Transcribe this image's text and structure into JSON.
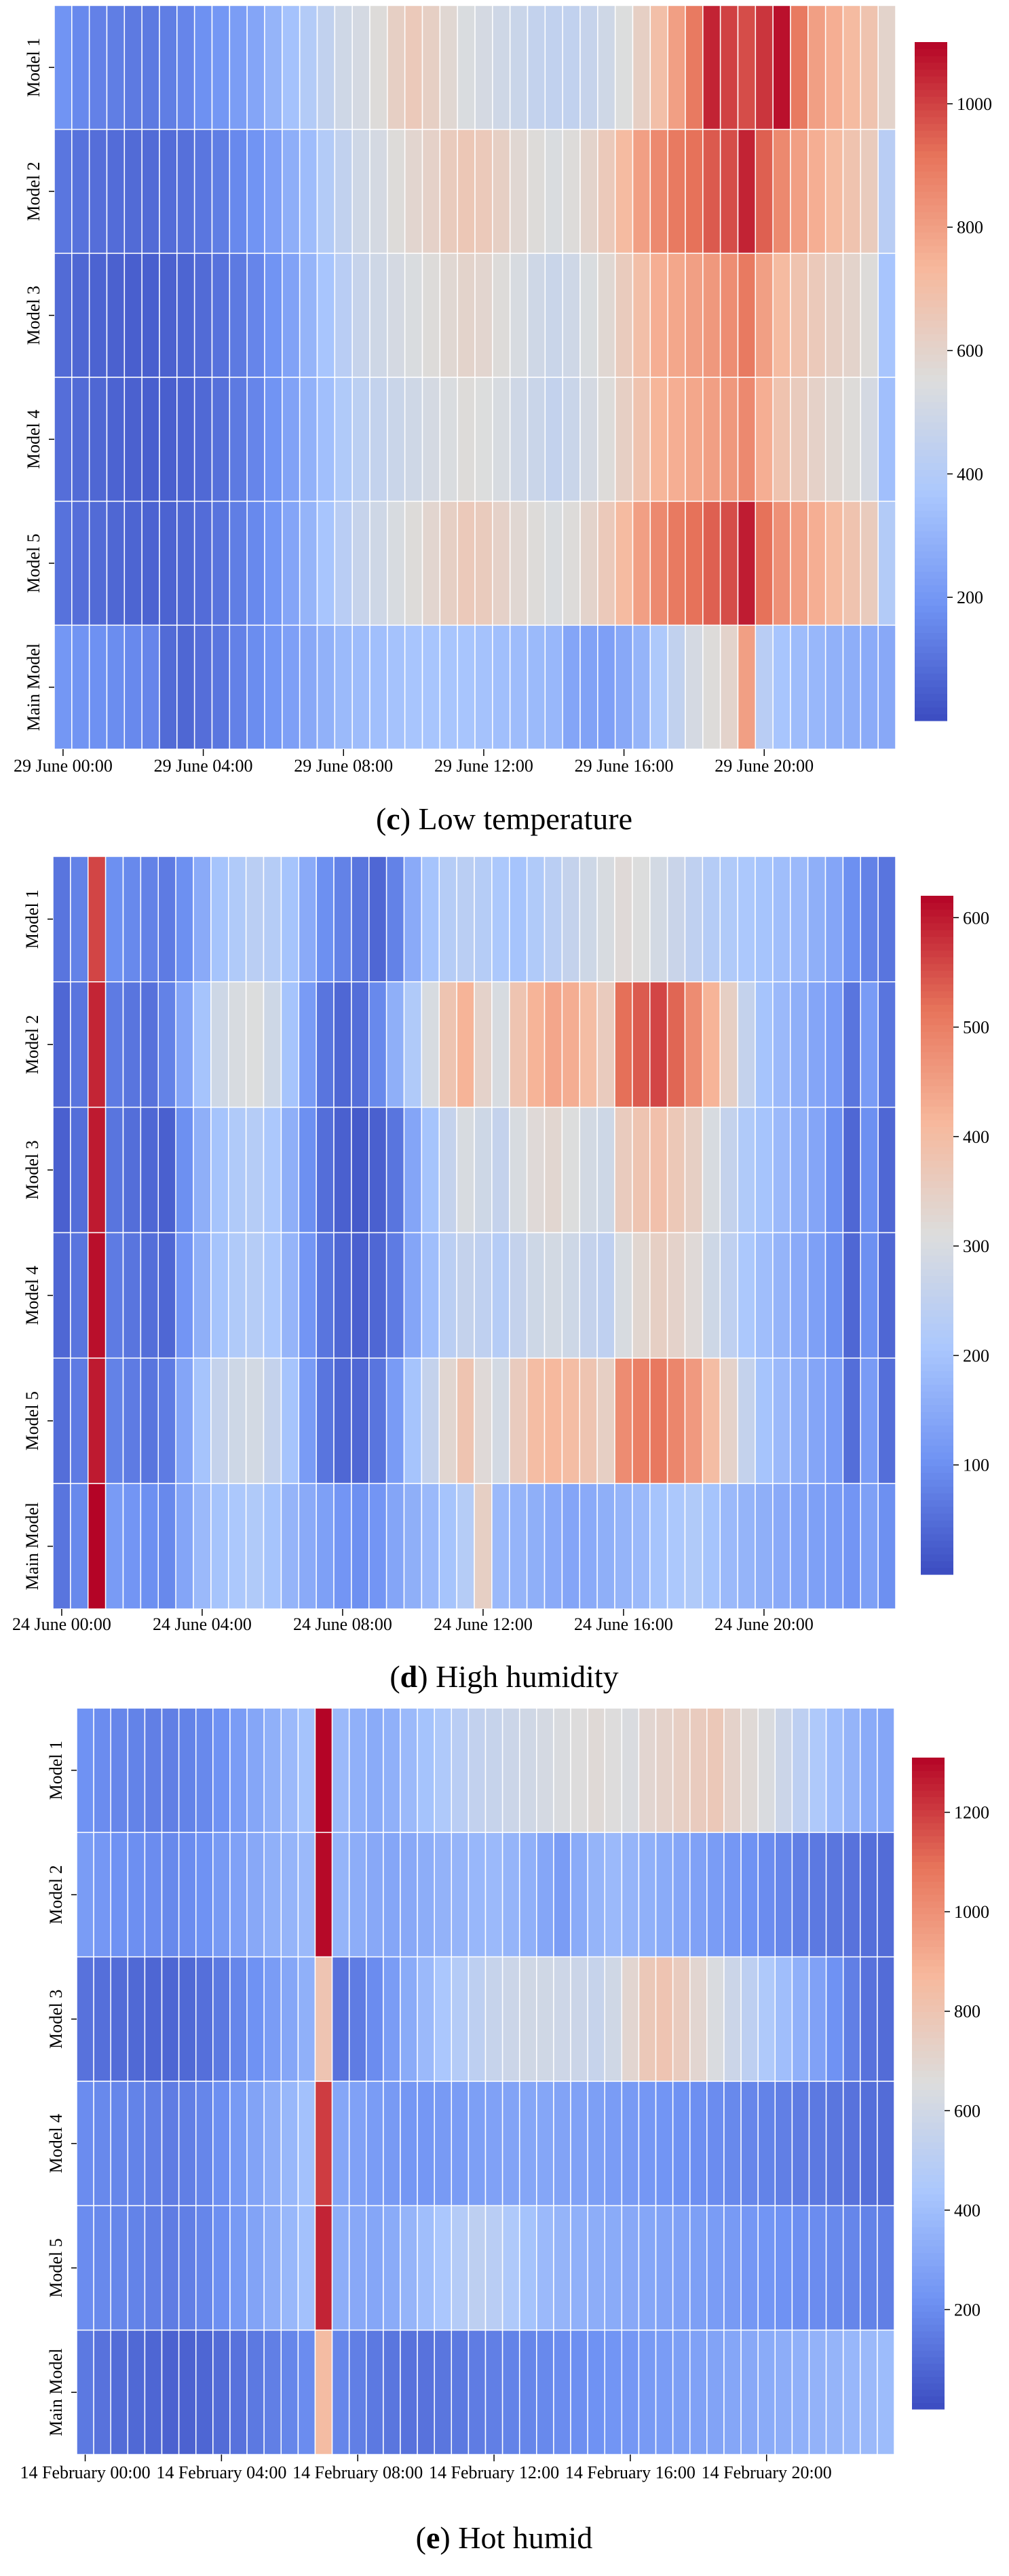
{
  "figure": {
    "palette": [
      "#3b4cc0",
      "#6f92f3",
      "#aac7fd",
      "#dcdddd",
      "#f7b89c",
      "#e7745b",
      "#b40426"
    ]
  },
  "chart_data": [
    {
      "type": "heatmap",
      "panel": "c",
      "caption_label": "c",
      "caption_text": " Low temperature",
      "rows": [
        "Model 1",
        "Model 2",
        "Model 3",
        "Model 4",
        "Model 5",
        "Main Model"
      ],
      "x_ticks": [
        "29 June 00:00",
        "29 June 04:00",
        "29 June 08:00",
        "29 June 12:00",
        "29 June 16:00",
        "29 June 20:00"
      ],
      "x_tick_columns": [
        0,
        8,
        16,
        24,
        32,
        40
      ],
      "n_columns": 48,
      "colorbar": {
        "min": 0,
        "max": 1100,
        "ticks": [
          200,
          400,
          600,
          800,
          1000
        ]
      },
      "values": [
        [
          190,
          160,
          140,
          130,
          120,
          120,
          130,
          150,
          180,
          200,
          220,
          250,
          300,
          350,
          400,
          450,
          500,
          520,
          560,
          620,
          650,
          620,
          580,
          540,
          520,
          500,
          480,
          460,
          450,
          450,
          470,
          500,
          550,
          620,
          700,
          800,
          900,
          1050,
          1000,
          980,
          1020,
          1080,
          900,
          800,
          760,
          720,
          680,
          600
        ],
        [
          110,
          100,
          90,
          85,
          80,
          80,
          85,
          95,
          110,
          130,
          160,
          190,
          230,
          280,
          330,
          400,
          450,
          500,
          520,
          560,
          590,
          610,
          640,
          660,
          650,
          620,
          580,
          560,
          540,
          560,
          600,
          650,
          720,
          800,
          860,
          900,
          920,
          960,
          980,
          1050,
          950,
          860,
          800,
          760,
          720,
          680,
          640,
          420
        ],
        [
          80,
          70,
          60,
          55,
          50,
          50,
          55,
          65,
          80,
          100,
          120,
          150,
          190,
          240,
          300,
          360,
          420,
          470,
          500,
          520,
          540,
          560,
          580,
          600,
          590,
          560,
          530,
          500,
          480,
          500,
          540,
          580,
          640,
          700,
          760,
          780,
          800,
          820,
          850,
          900,
          800,
          720,
          680,
          650,
          620,
          600,
          560,
          360
        ],
        [
          90,
          80,
          70,
          60,
          55,
          50,
          50,
          60,
          75,
          95,
          120,
          150,
          190,
          240,
          290,
          340,
          390,
          430,
          460,
          480,
          500,
          520,
          540,
          560,
          550,
          530,
          500,
          480,
          460,
          480,
          520,
          560,
          620,
          680,
          740,
          760,
          780,
          800,
          820,
          860,
          760,
          680,
          640,
          610,
          580,
          560,
          520,
          340
        ],
        [
          100,
          90,
          80,
          70,
          65,
          60,
          60,
          70,
          85,
          105,
          130,
          160,
          200,
          250,
          300,
          360,
          420,
          470,
          500,
          530,
          560,
          590,
          620,
          650,
          640,
          610,
          580,
          560,
          540,
          560,
          600,
          650,
          720,
          800,
          860,
          900,
          920,
          950,
          980,
          1060,
          920,
          840,
          800,
          760,
          720,
          680,
          640,
          400
        ],
        [
          200,
          190,
          180,
          170,
          160,
          150,
          80,
          70,
          90,
          110,
          140,
          170,
          200,
          230,
          260,
          290,
          320,
          330,
          340,
          350,
          360,
          360,
          360,
          360,
          350,
          340,
          330,
          320,
          310,
          250,
          240,
          230,
          260,
          300,
          380,
          450,
          520,
          560,
          600,
          800,
          420,
          360,
          330,
          310,
          290,
          280,
          270,
          260
        ]
      ]
    },
    {
      "type": "heatmap",
      "panel": "d",
      "caption_label": "d",
      "caption_text": " High humidity",
      "rows": [
        "Model 1",
        "Model 2",
        "Model 3",
        "Model 4",
        "Model 5",
        "Main Model"
      ],
      "x_ticks": [
        "24 June 00:00",
        "24 June 04:00",
        "24 June 08:00",
        "24 June 12:00",
        "24 June 16:00",
        "24 June 20:00"
      ],
      "x_tick_columns": [
        0,
        8,
        16,
        24,
        32,
        40
      ],
      "n_columns": 48,
      "colorbar": {
        "min": 0,
        "max": 620,
        "ticks": [
          100,
          200,
          300,
          400,
          500,
          600
        ]
      },
      "values": [
        [
          60,
          80,
          560,
          100,
          90,
          80,
          70,
          100,
          150,
          200,
          220,
          240,
          230,
          200,
          150,
          100,
          80,
          60,
          40,
          80,
          150,
          200,
          230,
          240,
          230,
          210,
          200,
          220,
          240,
          260,
          280,
          300,
          320,
          310,
          290,
          270,
          250,
          230,
          220,
          210,
          200,
          190,
          180,
          160,
          140,
          100,
          80,
          60
        ],
        [
          40,
          60,
          590,
          70,
          60,
          55,
          80,
          140,
          200,
          280,
          300,
          310,
          280,
          200,
          120,
          60,
          40,
          50,
          90,
          160,
          220,
          300,
          380,
          420,
          340,
          300,
          380,
          420,
          440,
          430,
          400,
          360,
          520,
          540,
          560,
          530,
          480,
          420,
          350,
          260,
          200,
          180,
          160,
          140,
          120,
          60,
          120,
          60
        ],
        [
          30,
          50,
          600,
          60,
          50,
          40,
          30,
          100,
          160,
          200,
          220,
          230,
          210,
          160,
          100,
          50,
          30,
          20,
          30,
          60,
          140,
          200,
          260,
          300,
          280,
          260,
          300,
          320,
          330,
          310,
          290,
          280,
          360,
          380,
          390,
          370,
          350,
          300,
          260,
          220,
          200,
          180,
          160,
          140,
          100,
          40,
          100,
          40
        ],
        [
          40,
          60,
          610,
          70,
          60,
          50,
          40,
          110,
          160,
          200,
          220,
          230,
          210,
          170,
          110,
          60,
          40,
          30,
          40,
          70,
          140,
          190,
          240,
          260,
          250,
          230,
          260,
          280,
          290,
          280,
          260,
          250,
          300,
          330,
          350,
          340,
          320,
          280,
          250,
          210,
          190,
          170,
          150,
          130,
          100,
          40,
          100,
          40
        ],
        [
          50,
          70,
          600,
          80,
          70,
          60,
          70,
          140,
          200,
          260,
          280,
          290,
          260,
          200,
          120,
          60,
          40,
          40,
          60,
          120,
          200,
          260,
          330,
          380,
          320,
          290,
          360,
          400,
          410,
          400,
          380,
          350,
          480,
          500,
          510,
          490,
          460,
          400,
          340,
          260,
          200,
          180,
          160,
          140,
          120,
          50,
          120,
          50
        ],
        [
          60,
          90,
          620,
          120,
          110,
          100,
          90,
          140,
          180,
          200,
          210,
          220,
          200,
          170,
          150,
          130,
          110,
          100,
          110,
          140,
          160,
          180,
          200,
          230,
          350,
          180,
          170,
          160,
          150,
          140,
          150,
          160,
          170,
          180,
          200,
          210,
          220,
          200,
          180,
          170,
          160,
          150,
          140,
          130,
          120,
          110,
          130,
          100
        ]
      ]
    },
    {
      "type": "heatmap",
      "panel": "e",
      "caption_label": "e",
      "caption_text": " Hot humid",
      "rows": [
        "Model 1",
        "Model 2",
        "Model 3",
        "Model 4",
        "Model 5",
        "Main Model"
      ],
      "x_ticks": [
        "14 February 00:00",
        "14 February 04:00",
        "14 February 08:00",
        "14 February 12:00",
        "14 February 16:00",
        "14 February 20:00"
      ],
      "x_tick_columns": [
        0,
        8,
        16,
        24,
        32,
        40
      ],
      "n_columns": 48,
      "colorbar": {
        "min": 0,
        "max": 1310,
        "ticks": [
          200,
          400,
          600,
          800,
          1000,
          1200
        ]
      },
      "values": [
        [
          220,
          200,
          180,
          170,
          160,
          160,
          170,
          190,
          220,
          260,
          300,
          340,
          380,
          420,
          1310,
          380,
          340,
          320,
          340,
          380,
          420,
          460,
          500,
          540,
          560,
          580,
          600,
          620,
          640,
          660,
          680,
          660,
          640,
          700,
          720,
          740,
          760,
          780,
          720,
          680,
          640,
          580,
          520,
          460,
          400,
          360,
          320,
          300
        ],
        [
          260,
          240,
          220,
          210,
          200,
          190,
          200,
          220,
          250,
          280,
          310,
          340,
          360,
          380,
          1300,
          360,
          330,
          310,
          300,
          310,
          330,
          350,
          360,
          370,
          380,
          360,
          340,
          300,
          260,
          320,
          360,
          380,
          360,
          340,
          320,
          300,
          280,
          260,
          240,
          220,
          200,
          180,
          160,
          140,
          130,
          120,
          110,
          100
        ],
        [
          120,
          110,
          100,
          90,
          80,
          80,
          90,
          110,
          140,
          180,
          220,
          260,
          300,
          340,
          800,
          120,
          150,
          200,
          260,
          320,
          380,
          440,
          480,
          520,
          560,
          580,
          600,
          600,
          590,
          580,
          560,
          600,
          700,
          780,
          800,
          760,
          700,
          640,
          580,
          520,
          460,
          400,
          340,
          280,
          220,
          160,
          120,
          100
        ],
        [
          200,
          190,
          180,
          170,
          160,
          150,
          160,
          180,
          210,
          250,
          290,
          330,
          370,
          410,
          1200,
          300,
          280,
          260,
          250,
          240,
          240,
          250,
          260,
          270,
          280,
          290,
          300,
          300,
          290,
          280,
          270,
          260,
          250,
          240,
          230,
          220,
          210,
          200,
          190,
          180,
          170,
          160,
          150,
          140,
          130,
          120,
          110,
          100
        ],
        [
          200,
          190,
          180,
          170,
          160,
          150,
          160,
          180,
          210,
          250,
          290,
          330,
          370,
          410,
          1250,
          330,
          310,
          300,
          320,
          360,
          400,
          440,
          480,
          520,
          500,
          460,
          420,
          380,
          360,
          340,
          330,
          320,
          310,
          300,
          290,
          280,
          270,
          260,
          250,
          240,
          230,
          220,
          210,
          200,
          190,
          180,
          170,
          160
        ],
        [
          140,
          120,
          100,
          90,
          80,
          70,
          70,
          80,
          100,
          120,
          140,
          160,
          180,
          200,
          850,
          180,
          160,
          140,
          130,
          120,
          120,
          130,
          140,
          150,
          160,
          170,
          180,
          190,
          200,
          210,
          220,
          230,
          240,
          250,
          260,
          270,
          280,
          290,
          300,
          310,
          320,
          330,
          340,
          350,
          360,
          370,
          380,
          390
        ]
      ]
    }
  ]
}
